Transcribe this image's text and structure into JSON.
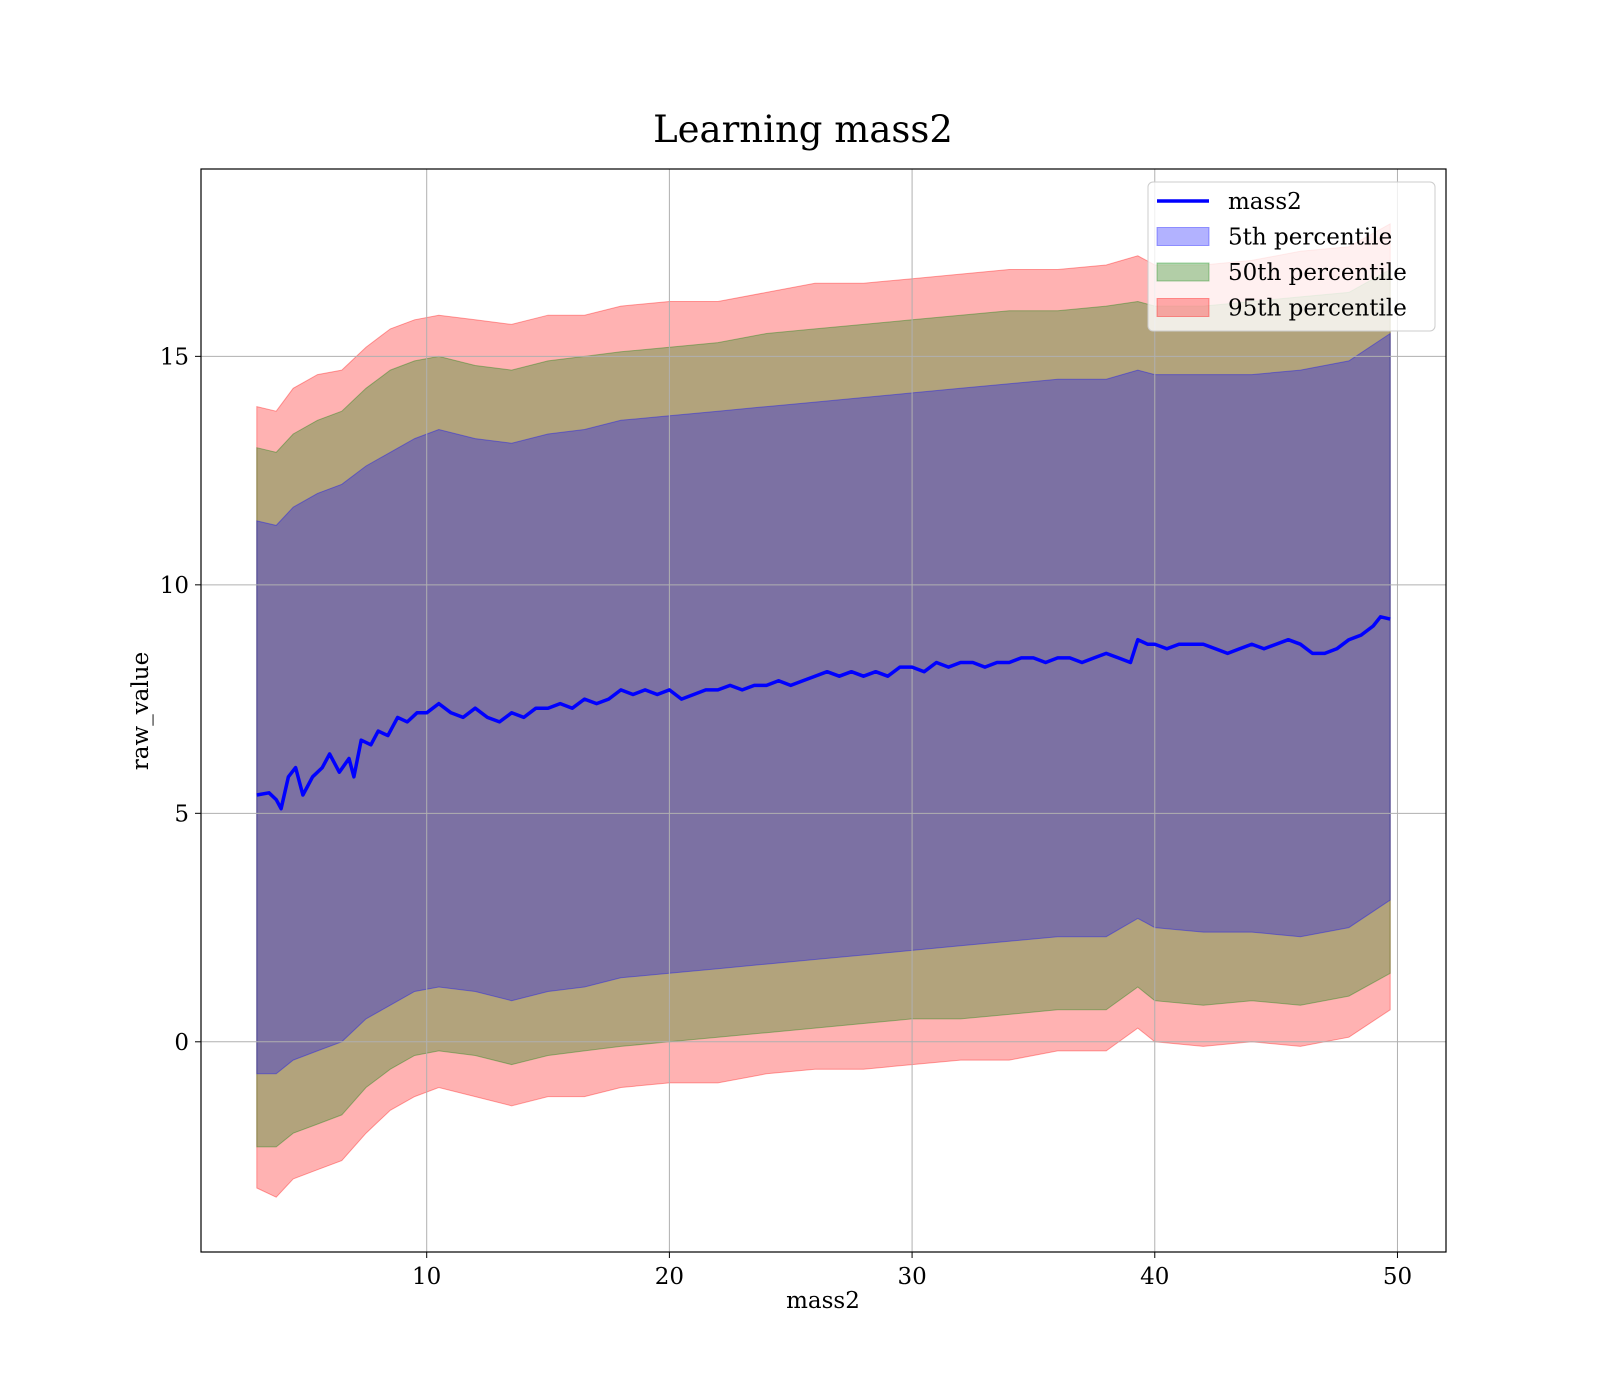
{
  "chart_data": {
    "type": "area",
    "title": "Learning mass2",
    "xlabel": "mass2",
    "ylabel": "raw_value",
    "xlim": [
      0.7,
      52
    ],
    "ylim": [
      -4.6,
      19.1
    ],
    "xticks": [
      10,
      20,
      30,
      40,
      50
    ],
    "yticks": [
      0,
      5,
      10,
      15
    ],
    "grid": true,
    "legend_position": "top-right",
    "line": {
      "name": "mass2",
      "color": "#0000ff",
      "points": [
        [
          3.0,
          5.4
        ],
        [
          3.5,
          5.45
        ],
        [
          3.8,
          5.3
        ],
        [
          4.0,
          5.1
        ],
        [
          4.3,
          5.8
        ],
        [
          4.6,
          6.0
        ],
        [
          4.9,
          5.4
        ],
        [
          5.3,
          5.8
        ],
        [
          5.7,
          6.0
        ],
        [
          6.0,
          6.3
        ],
        [
          6.4,
          5.9
        ],
        [
          6.8,
          6.2
        ],
        [
          7.0,
          5.8
        ],
        [
          7.3,
          6.6
        ],
        [
          7.7,
          6.5
        ],
        [
          8.0,
          6.8
        ],
        [
          8.4,
          6.7
        ],
        [
          8.8,
          7.1
        ],
        [
          9.2,
          7.0
        ],
        [
          9.6,
          7.2
        ],
        [
          10.0,
          7.2
        ],
        [
          10.5,
          7.4
        ],
        [
          11.0,
          7.2
        ],
        [
          11.5,
          7.1
        ],
        [
          12.0,
          7.3
        ],
        [
          12.5,
          7.1
        ],
        [
          13.0,
          7.0
        ],
        [
          13.5,
          7.2
        ],
        [
          14.0,
          7.1
        ],
        [
          14.5,
          7.3
        ],
        [
          15.0,
          7.3
        ],
        [
          15.5,
          7.4
        ],
        [
          16.0,
          7.3
        ],
        [
          16.5,
          7.5
        ],
        [
          17.0,
          7.4
        ],
        [
          17.5,
          7.5
        ],
        [
          18.0,
          7.7
        ],
        [
          18.5,
          7.6
        ],
        [
          19.0,
          7.7
        ],
        [
          19.5,
          7.6
        ],
        [
          20.0,
          7.7
        ],
        [
          20.5,
          7.5
        ],
        [
          21.0,
          7.6
        ],
        [
          21.5,
          7.7
        ],
        [
          22.0,
          7.7
        ],
        [
          22.5,
          7.8
        ],
        [
          23.0,
          7.7
        ],
        [
          23.5,
          7.8
        ],
        [
          24.0,
          7.8
        ],
        [
          24.5,
          7.9
        ],
        [
          25.0,
          7.8
        ],
        [
          25.5,
          7.9
        ],
        [
          26.0,
          8.0
        ],
        [
          26.5,
          8.1
        ],
        [
          27.0,
          8.0
        ],
        [
          27.5,
          8.1
        ],
        [
          28.0,
          8.0
        ],
        [
          28.5,
          8.1
        ],
        [
          29.0,
          8.0
        ],
        [
          29.5,
          8.2
        ],
        [
          30.0,
          8.2
        ],
        [
          30.5,
          8.1
        ],
        [
          31.0,
          8.3
        ],
        [
          31.5,
          8.2
        ],
        [
          32.0,
          8.3
        ],
        [
          32.5,
          8.3
        ],
        [
          33.0,
          8.2
        ],
        [
          33.5,
          8.3
        ],
        [
          34.0,
          8.3
        ],
        [
          34.5,
          8.4
        ],
        [
          35.0,
          8.4
        ],
        [
          35.5,
          8.3
        ],
        [
          36.0,
          8.4
        ],
        [
          36.5,
          8.4
        ],
        [
          37.0,
          8.3
        ],
        [
          37.5,
          8.4
        ],
        [
          38.0,
          8.5
        ],
        [
          38.5,
          8.4
        ],
        [
          39.0,
          8.3
        ],
        [
          39.3,
          8.8
        ],
        [
          39.7,
          8.7
        ],
        [
          40.0,
          8.7
        ],
        [
          40.5,
          8.6
        ],
        [
          41.0,
          8.7
        ],
        [
          41.5,
          8.7
        ],
        [
          42.0,
          8.7
        ],
        [
          42.5,
          8.6
        ],
        [
          43.0,
          8.5
        ],
        [
          43.5,
          8.6
        ],
        [
          44.0,
          8.7
        ],
        [
          44.5,
          8.6
        ],
        [
          45.0,
          8.7
        ],
        [
          45.5,
          8.8
        ],
        [
          46.0,
          8.7
        ],
        [
          46.5,
          8.5
        ],
        [
          47.0,
          8.5
        ],
        [
          47.5,
          8.6
        ],
        [
          48.0,
          8.8
        ],
        [
          48.5,
          8.9
        ],
        [
          49.0,
          9.1
        ],
        [
          49.3,
          9.3
        ],
        [
          49.7,
          9.25
        ]
      ]
    },
    "bands": [
      {
        "name": "95th percentile",
        "color": "#ff0000",
        "opacity": 0.3,
        "upper": [
          [
            3.0,
            13.9
          ],
          [
            3.8,
            13.8
          ],
          [
            4.5,
            14.3
          ],
          [
            5.5,
            14.6
          ],
          [
            6.5,
            14.7
          ],
          [
            7.5,
            15.2
          ],
          [
            8.5,
            15.6
          ],
          [
            9.5,
            15.8
          ],
          [
            10.5,
            15.9
          ],
          [
            12.0,
            15.8
          ],
          [
            13.5,
            15.7
          ],
          [
            15.0,
            15.9
          ],
          [
            16.5,
            15.9
          ],
          [
            18.0,
            16.1
          ],
          [
            20.0,
            16.2
          ],
          [
            22.0,
            16.2
          ],
          [
            24.0,
            16.4
          ],
          [
            26.0,
            16.6
          ],
          [
            28.0,
            16.6
          ],
          [
            30.0,
            16.7
          ],
          [
            32.0,
            16.8
          ],
          [
            34.0,
            16.9
          ],
          [
            36.0,
            16.9
          ],
          [
            38.0,
            17.0
          ],
          [
            39.3,
            17.2
          ],
          [
            40.0,
            17.0
          ],
          [
            42.0,
            17.0
          ],
          [
            44.0,
            17.1
          ],
          [
            46.0,
            17.3
          ],
          [
            48.0,
            17.4
          ],
          [
            49.7,
            17.9
          ]
        ],
        "lower": [
          [
            3.0,
            -3.2
          ],
          [
            3.8,
            -3.4
          ],
          [
            4.5,
            -3.0
          ],
          [
            5.5,
            -2.8
          ],
          [
            6.5,
            -2.6
          ],
          [
            7.5,
            -2.0
          ],
          [
            8.5,
            -1.5
          ],
          [
            9.5,
            -1.2
          ],
          [
            10.5,
            -1.0
          ],
          [
            12.0,
            -1.2
          ],
          [
            13.5,
            -1.4
          ],
          [
            15.0,
            -1.2
          ],
          [
            16.5,
            -1.2
          ],
          [
            18.0,
            -1.0
          ],
          [
            20.0,
            -0.9
          ],
          [
            22.0,
            -0.9
          ],
          [
            24.0,
            -0.7
          ],
          [
            26.0,
            -0.6
          ],
          [
            28.0,
            -0.6
          ],
          [
            30.0,
            -0.5
          ],
          [
            32.0,
            -0.4
          ],
          [
            34.0,
            -0.4
          ],
          [
            36.0,
            -0.2
          ],
          [
            38.0,
            -0.2
          ],
          [
            39.3,
            0.3
          ],
          [
            40.0,
            0.0
          ],
          [
            42.0,
            -0.1
          ],
          [
            44.0,
            0.0
          ],
          [
            46.0,
            -0.1
          ],
          [
            48.0,
            0.1
          ],
          [
            49.7,
            0.7
          ]
        ]
      },
      {
        "name": "50th percentile",
        "color": "#008000",
        "opacity": 0.3,
        "upper": [
          [
            3.0,
            13.0
          ],
          [
            3.8,
            12.9
          ],
          [
            4.5,
            13.3
          ],
          [
            5.5,
            13.6
          ],
          [
            6.5,
            13.8
          ],
          [
            7.5,
            14.3
          ],
          [
            8.5,
            14.7
          ],
          [
            9.5,
            14.9
          ],
          [
            10.5,
            15.0
          ],
          [
            12.0,
            14.8
          ],
          [
            13.5,
            14.7
          ],
          [
            15.0,
            14.9
          ],
          [
            16.5,
            15.0
          ],
          [
            18.0,
            15.1
          ],
          [
            20.0,
            15.2
          ],
          [
            22.0,
            15.3
          ],
          [
            24.0,
            15.5
          ],
          [
            26.0,
            15.6
          ],
          [
            28.0,
            15.7
          ],
          [
            30.0,
            15.8
          ],
          [
            32.0,
            15.9
          ],
          [
            34.0,
            16.0
          ],
          [
            36.0,
            16.0
          ],
          [
            38.0,
            16.1
          ],
          [
            39.3,
            16.2
          ],
          [
            40.0,
            16.1
          ],
          [
            42.0,
            16.1
          ],
          [
            44.0,
            16.2
          ],
          [
            46.0,
            16.3
          ],
          [
            48.0,
            16.4
          ],
          [
            49.7,
            16.9
          ]
        ],
        "lower": [
          [
            3.0,
            -2.3
          ],
          [
            3.8,
            -2.3
          ],
          [
            4.5,
            -2.0
          ],
          [
            5.5,
            -1.8
          ],
          [
            6.5,
            -1.6
          ],
          [
            7.5,
            -1.0
          ],
          [
            8.5,
            -0.6
          ],
          [
            9.5,
            -0.3
          ],
          [
            10.5,
            -0.2
          ],
          [
            12.0,
            -0.3
          ],
          [
            13.5,
            -0.5
          ],
          [
            15.0,
            -0.3
          ],
          [
            16.5,
            -0.2
          ],
          [
            18.0,
            -0.1
          ],
          [
            20.0,
            0.0
          ],
          [
            22.0,
            0.1
          ],
          [
            24.0,
            0.2
          ],
          [
            26.0,
            0.3
          ],
          [
            28.0,
            0.4
          ],
          [
            30.0,
            0.5
          ],
          [
            32.0,
            0.5
          ],
          [
            34.0,
            0.6
          ],
          [
            36.0,
            0.7
          ],
          [
            38.0,
            0.7
          ],
          [
            39.3,
            1.2
          ],
          [
            40.0,
            0.9
          ],
          [
            42.0,
            0.8
          ],
          [
            44.0,
            0.9
          ],
          [
            46.0,
            0.8
          ],
          [
            48.0,
            1.0
          ],
          [
            49.7,
            1.5
          ]
        ]
      },
      {
        "name": "5th percentile",
        "color": "#0000ff",
        "opacity": 0.3,
        "upper": [
          [
            3.0,
            11.4
          ],
          [
            3.8,
            11.3
          ],
          [
            4.5,
            11.7
          ],
          [
            5.5,
            12.0
          ],
          [
            6.5,
            12.2
          ],
          [
            7.5,
            12.6
          ],
          [
            8.5,
            12.9
          ],
          [
            9.5,
            13.2
          ],
          [
            10.5,
            13.4
          ],
          [
            12.0,
            13.2
          ],
          [
            13.5,
            13.1
          ],
          [
            15.0,
            13.3
          ],
          [
            16.5,
            13.4
          ],
          [
            18.0,
            13.6
          ],
          [
            20.0,
            13.7
          ],
          [
            22.0,
            13.8
          ],
          [
            24.0,
            13.9
          ],
          [
            26.0,
            14.0
          ],
          [
            28.0,
            14.1
          ],
          [
            30.0,
            14.2
          ],
          [
            32.0,
            14.3
          ],
          [
            34.0,
            14.4
          ],
          [
            36.0,
            14.5
          ],
          [
            38.0,
            14.5
          ],
          [
            39.3,
            14.7
          ],
          [
            40.0,
            14.6
          ],
          [
            42.0,
            14.6
          ],
          [
            44.0,
            14.6
          ],
          [
            46.0,
            14.7
          ],
          [
            48.0,
            14.9
          ],
          [
            49.7,
            15.5
          ]
        ],
        "lower": [
          [
            3.0,
            -0.7
          ],
          [
            3.8,
            -0.7
          ],
          [
            4.5,
            -0.4
          ],
          [
            5.5,
            -0.2
          ],
          [
            6.5,
            0.0
          ],
          [
            7.5,
            0.5
          ],
          [
            8.5,
            0.8
          ],
          [
            9.5,
            1.1
          ],
          [
            10.5,
            1.2
          ],
          [
            12.0,
            1.1
          ],
          [
            13.5,
            0.9
          ],
          [
            15.0,
            1.1
          ],
          [
            16.5,
            1.2
          ],
          [
            18.0,
            1.4
          ],
          [
            20.0,
            1.5
          ],
          [
            22.0,
            1.6
          ],
          [
            24.0,
            1.7
          ],
          [
            26.0,
            1.8
          ],
          [
            28.0,
            1.9
          ],
          [
            30.0,
            2.0
          ],
          [
            32.0,
            2.1
          ],
          [
            34.0,
            2.2
          ],
          [
            36.0,
            2.3
          ],
          [
            38.0,
            2.3
          ],
          [
            39.3,
            2.7
          ],
          [
            40.0,
            2.5
          ],
          [
            42.0,
            2.4
          ],
          [
            44.0,
            2.4
          ],
          [
            46.0,
            2.3
          ],
          [
            48.0,
            2.5
          ],
          [
            49.7,
            3.1
          ]
        ]
      }
    ],
    "legend": [
      {
        "name": "mass2",
        "kind": "line",
        "color": "#0000ff"
      },
      {
        "name": "5th percentile",
        "kind": "patch",
        "color": "#0000ff"
      },
      {
        "name": "50th percentile",
        "kind": "patch",
        "color": "#008000"
      },
      {
        "name": "95th percentile",
        "kind": "patch",
        "color": "#ff0000"
      }
    ]
  }
}
